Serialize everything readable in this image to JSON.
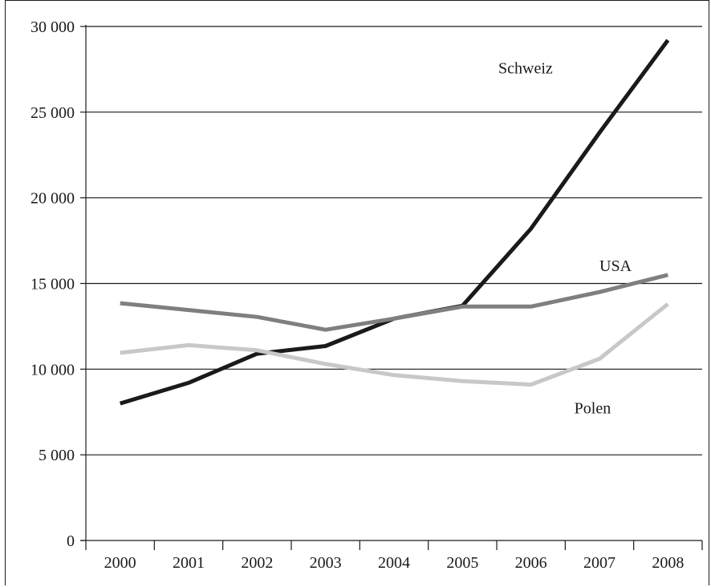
{
  "chart_data": {
    "type": "line",
    "title": "",
    "xlabel": "",
    "ylabel": "",
    "x": [
      "2000",
      "2001",
      "2002",
      "2003",
      "2004",
      "2005",
      "2006",
      "2007",
      "2008"
    ],
    "ylim": [
      0,
      30000
    ],
    "yticks": [
      0,
      5000,
      10000,
      15000,
      20000,
      25000,
      30000
    ],
    "ytick_labels": [
      "0",
      "5 000",
      "10 000",
      "15 000",
      "20 000",
      "25 000",
      "30 000"
    ],
    "grid": "horizontal",
    "legend": "none (inline labels)",
    "series": [
      {
        "name": "Schweiz",
        "color": "#1a1a1a",
        "values": [
          8000,
          9200,
          10900,
          11350,
          12950,
          13700,
          18200,
          23800,
          29200
        ]
      },
      {
        "name": "USA",
        "color": "#7f7f7f",
        "values": [
          13850,
          13450,
          13050,
          12300,
          12950,
          13650,
          13650,
          14500,
          15500
        ]
      },
      {
        "name": "Polen",
        "color": "#c8c8c8",
        "values": [
          10950,
          11400,
          11100,
          10300,
          9650,
          9300,
          9100,
          10600,
          13800
        ]
      }
    ]
  }
}
